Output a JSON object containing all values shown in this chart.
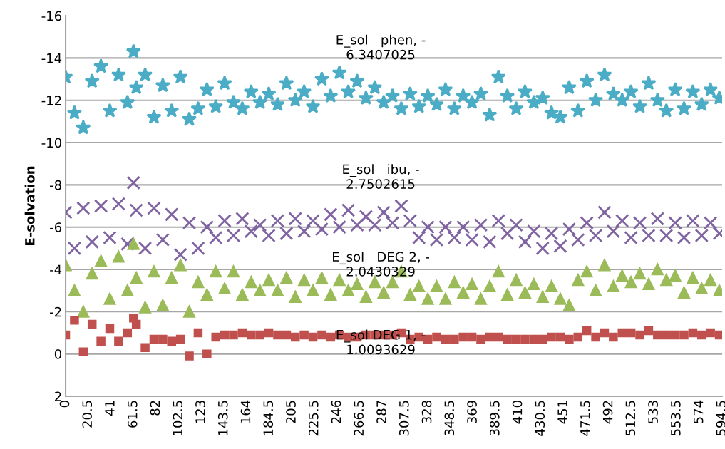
{
  "chart_data": {
    "type": "scatter",
    "ylabel": "E-solvation",
    "x": [
      0,
      8,
      16,
      24,
      32,
      40,
      48,
      56,
      61.5,
      64,
      72,
      80,
      88,
      96,
      104,
      112,
      120,
      128,
      136,
      144,
      152,
      160,
      168,
      176,
      184,
      192,
      200,
      208,
      216,
      224,
      232,
      240,
      248,
      256,
      264,
      272,
      280,
      288,
      296,
      304,
      312,
      320,
      328,
      336,
      344,
      352,
      360,
      368,
      376,
      384,
      392,
      400,
      408,
      416,
      424,
      432,
      440,
      448,
      456,
      464,
      472,
      480,
      488,
      496,
      504,
      512,
      520,
      528,
      536,
      544,
      552,
      560,
      568,
      576,
      584,
      592
    ],
    "series": [
      {
        "color": "#4bacc6",
        "marker": "star",
        "values": [
          -13.1,
          -11.4,
          -10.7,
          -12.9,
          -13.6,
          -11.5,
          -13.2,
          -11.9,
          -14.3,
          -12.6,
          -13.2,
          -11.2,
          -12.7,
          -11.5,
          -13.1,
          -11.1,
          -11.6,
          -12.5,
          -11.7,
          -12.8,
          -11.9,
          -11.6,
          -12.4,
          -11.9,
          -12.3,
          -11.8,
          -12.8,
          -12.0,
          -12.4,
          -11.7,
          -13.0,
          -12.2,
          -13.3,
          -12.4,
          -12.9,
          -12.1,
          -12.6,
          -11.9,
          -12.2,
          -11.6,
          -12.3,
          -11.7,
          -12.2,
          -11.8,
          -12.5,
          -11.6,
          -12.2,
          -11.9,
          -12.3,
          -11.3,
          -13.1,
          -12.2,
          -11.6,
          -12.4,
          -11.9,
          -12.1,
          -11.4,
          -11.2,
          -12.6,
          -11.5,
          -12.9,
          -12.0,
          -13.2,
          -12.3,
          -12.0,
          -12.4,
          -11.7,
          -12.8,
          -12.0,
          -11.5,
          -12.5,
          -11.6,
          -12.4,
          -11.8,
          -12.5,
          -12.1
        ]
      },
      {
        "color": "#8064a2",
        "marker": "cross",
        "values": [
          -6.7,
          -5.0,
          -6.9,
          -5.3,
          -7.0,
          -5.5,
          -7.1,
          -5.2,
          -8.1,
          -6.8,
          -5.0,
          -6.9,
          -5.4,
          -6.6,
          -4.7,
          -6.2,
          -5.0,
          -6.0,
          -5.5,
          -6.3,
          -5.6,
          -6.4,
          -5.8,
          -6.1,
          -5.6,
          -6.3,
          -5.7,
          -6.4,
          -5.8,
          -6.3,
          -5.9,
          -6.6,
          -6.0,
          -6.8,
          -6.1,
          -6.5,
          -6.1,
          -6.7,
          -6.2,
          -7.0,
          -6.3,
          -5.5,
          -6.0,
          -5.4,
          -6.0,
          -5.5,
          -6.0,
          -5.4,
          -6.1,
          -5.3,
          -6.3,
          -5.7,
          -6.1,
          -5.3,
          -5.8,
          -5.0,
          -5.7,
          -5.1,
          -5.9,
          -5.4,
          -6.2,
          -5.6,
          -6.7,
          -5.8,
          -6.3,
          -5.5,
          -6.2,
          -5.6,
          -6.4,
          -5.6,
          -6.2,
          -5.5,
          -6.3,
          -5.6,
          -6.2,
          -5.7
        ]
      },
      {
        "color": "#9bbb59",
        "marker": "triangle",
        "values": [
          -4.2,
          -3.0,
          -2.0,
          -3.8,
          -4.4,
          -2.6,
          -4.6,
          -3.0,
          -5.2,
          -3.6,
          -2.2,
          -3.9,
          -2.3,
          -3.6,
          -4.2,
          -2.0,
          -3.4,
          -2.8,
          -3.9,
          -3.1,
          -3.9,
          -2.8,
          -3.4,
          -3.0,
          -3.5,
          -3.0,
          -3.6,
          -2.7,
          -3.5,
          -3.0,
          -3.6,
          -2.8,
          -3.5,
          -3.0,
          -3.3,
          -2.7,
          -3.4,
          -2.9,
          -3.4,
          -3.9,
          -2.8,
          -3.2,
          -2.6,
          -3.2,
          -2.6,
          -3.4,
          -2.9,
          -3.3,
          -2.6,
          -3.2,
          -3.9,
          -2.8,
          -3.5,
          -2.9,
          -3.3,
          -2.7,
          -3.2,
          -2.6,
          -2.3,
          -3.5,
          -3.9,
          -3.0,
          -4.2,
          -3.2,
          -3.7,
          -3.4,
          -3.8,
          -3.3,
          -4.0,
          -3.5,
          -3.7,
          -2.9,
          -3.6,
          -3.1,
          -3.5,
          -3.0
        ]
      },
      {
        "color": "#c0504d",
        "marker": "square",
        "values": [
          -0.9,
          -1.6,
          -0.1,
          -1.4,
          -0.6,
          -1.2,
          -0.6,
          -1.0,
          -1.7,
          -1.4,
          -0.3,
          -0.7,
          -0.7,
          -0.6,
          -0.7,
          0.1,
          -1.0,
          0.0,
          -0.8,
          -0.9,
          -0.9,
          -1.0,
          -0.9,
          -0.9,
          -1.0,
          -0.9,
          -0.9,
          -0.8,
          -0.9,
          -0.8,
          -0.9,
          -0.8,
          -0.9,
          -0.8,
          -0.8,
          -0.9,
          -0.9,
          -0.9,
          -0.9,
          -1.0,
          -0.7,
          -0.8,
          -0.7,
          -0.8,
          -0.7,
          -0.7,
          -0.8,
          -0.8,
          -0.7,
          -0.8,
          -0.8,
          -0.7,
          -0.7,
          -0.7,
          -0.7,
          -0.7,
          -0.8,
          -0.8,
          -0.7,
          -0.8,
          -1.1,
          -0.8,
          -1.0,
          -0.8,
          -1.0,
          -1.0,
          -0.9,
          -1.1,
          -0.9,
          -0.9,
          -0.9,
          -0.9,
          -1.0,
          -0.9,
          -1.0,
          -0.9
        ]
      }
    ],
    "xlim": [
      0,
      594.5
    ],
    "xticks": [
      0,
      20.5,
      41,
      61.5,
      82,
      102.5,
      123,
      143.5,
      164,
      184.5,
      205,
      225.5,
      246,
      266.5,
      287,
      307.5,
      328,
      348.5,
      369,
      389.5,
      410,
      430.5,
      451,
      471.5,
      492,
      512.5,
      533,
      553.5,
      574,
      594.5
    ],
    "ylim": [
      2,
      -16
    ],
    "yticks": [
      -16,
      -14,
      -12,
      -10,
      -8,
      -6,
      -4,
      -2,
      0,
      2
    ],
    "grid": "y",
    "annotations": [
      "E_sol   phen, -\n6.3407025",
      "E_sol   ibu, -\n2.7502615",
      "E_sol   DEG 2, -\n2.0430329",
      "E_sol DEG 1, -\n1.0093629"
    ]
  }
}
